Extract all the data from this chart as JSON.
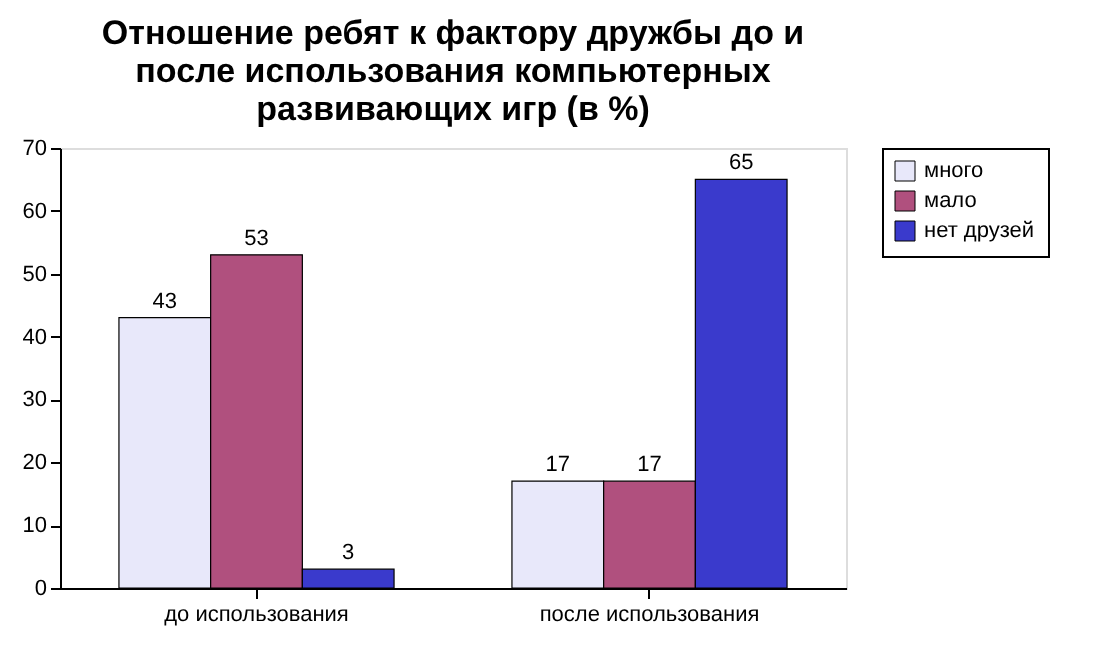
{
  "chart_data": {
    "type": "bar",
    "title": "Отношение ребят к фактору дружбы до и\nпосле использования компьютерных\nразвивающих игр (в %)",
    "categories": [
      "до использования",
      "после использования"
    ],
    "series": [
      {
        "name": "много",
        "color": "#e8e8fa",
        "values": [
          43,
          17
        ]
      },
      {
        "name": "мало",
        "color": "#b0507e",
        "values": [
          53,
          17
        ]
      },
      {
        "name": "нет друзей",
        "color": "#3a3acc",
        "values": [
          3,
          65
        ]
      }
    ],
    "ylim": [
      0,
      70
    ],
    "yticks": [
      0,
      10,
      20,
      30,
      40,
      50,
      60,
      70
    ],
    "grid": false,
    "legend": "right",
    "data_labels": true
  }
}
